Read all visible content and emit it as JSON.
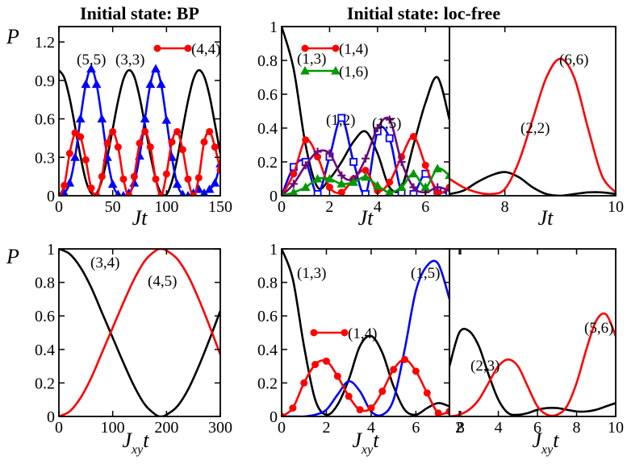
{
  "chart_data": [
    {
      "type": "line",
      "title": "Initial state: BP",
      "ylabel": "P",
      "xlabel": "Jt",
      "xlim": [
        0,
        150
      ],
      "ylim": [
        0,
        1.32
      ],
      "xticks": [
        0,
        50,
        100,
        150
      ],
      "yticks": [
        0,
        0.3,
        0.6,
        0.9,
        1.2
      ],
      "ytick_labels": [
        "0",
        "0.3",
        "0.6",
        "0.9",
        "1.2"
      ],
      "series": [
        {
          "name": "(3,3)",
          "color": "#000000",
          "marker": "none",
          "x": [
            0,
            5,
            10,
            15,
            20,
            25,
            30,
            35,
            40,
            45,
            50,
            55,
            60,
            65,
            70,
            75,
            80,
            85,
            90,
            95,
            100,
            105,
            110,
            115,
            120,
            125,
            130,
            135,
            140,
            145,
            150
          ],
          "y": [
            0.98,
            0.92,
            0.76,
            0.54,
            0.31,
            0.12,
            0.02,
            0.02,
            0.12,
            0.3,
            0.52,
            0.74,
            0.91,
            0.98,
            0.93,
            0.77,
            0.55,
            0.32,
            0.13,
            0.02,
            0.01,
            0.11,
            0.29,
            0.52,
            0.74,
            0.91,
            0.98,
            0.93,
            0.78,
            0.56,
            0.33
          ]
        },
        {
          "name": "(5,5)",
          "color": "#0000ff",
          "marker": "triangle",
          "x": [
            0,
            5,
            10,
            15,
            20,
            25,
            30,
            35,
            40,
            45,
            50,
            55,
            60,
            65,
            70,
            75,
            80,
            85,
            90,
            95,
            100,
            105,
            110,
            115,
            120,
            125,
            130,
            135,
            140,
            145,
            150
          ],
          "y": [
            0,
            0.02,
            0.1,
            0.3,
            0.6,
            0.87,
            0.99,
            0.87,
            0.6,
            0.3,
            0.09,
            0.01,
            0,
            0.02,
            0.1,
            0.31,
            0.6,
            0.87,
            0.99,
            0.87,
            0.59,
            0.3,
            0.09,
            0.01,
            0,
            0.02,
            0.05,
            0.02,
            0.05,
            0.1,
            0.25
          ]
        },
        {
          "name": "(4,4)",
          "color": "#ff0000",
          "marker": "circle",
          "x": [
            0,
            5,
            10,
            15,
            20,
            25,
            30,
            35,
            40,
            45,
            50,
            55,
            60,
            65,
            70,
            75,
            80,
            85,
            90,
            95,
            100,
            105,
            110,
            115,
            120,
            125,
            130,
            135,
            140,
            145,
            150
          ],
          "y": [
            0,
            0.08,
            0.33,
            0.49,
            0.46,
            0.28,
            0.06,
            0,
            0.15,
            0.41,
            0.5,
            0.38,
            0.13,
            0,
            0.15,
            0.41,
            0.5,
            0.38,
            0.13,
            0,
            0.17,
            0.42,
            0.5,
            0.36,
            0.13,
            0,
            0.14,
            0.42,
            0.5,
            0.38,
            0.2
          ]
        }
      ],
      "annotations": [
        "(5,5)",
        "(3,3)"
      ],
      "legend": [
        "(4,4)"
      ]
    },
    {
      "type": "line",
      "title": "Initial state: loc-free",
      "xlabel": "Jt",
      "xlim": [
        0,
        7
      ],
      "ylim": [
        0,
        1
      ],
      "xticks": [
        0,
        2,
        4,
        6
      ],
      "yticks": [
        0,
        0.2,
        0.4,
        0.6,
        0.8,
        1
      ],
      "ytick_labels": [
        "0",
        "0.2",
        "0.4",
        "0.6",
        "0.8",
        "1"
      ],
      "series": [
        {
          "name": "(1,3)",
          "color": "#000000",
          "marker": "none",
          "x": [
            0,
            0.5,
            1,
            1.5,
            2,
            2.5,
            3,
            3.5,
            4,
            4.5,
            5,
            5.5,
            6,
            6.5,
            7
          ],
          "y": [
            1.0,
            0.75,
            0.3,
            0.05,
            0.1,
            0.2,
            0.32,
            0.38,
            0.25,
            0.05,
            0.05,
            0.3,
            0.55,
            0.7,
            0.45
          ]
        },
        {
          "name": "(1,2)",
          "color": "#0000ff",
          "marker": "square",
          "x": [
            0,
            0.5,
            1,
            1.5,
            2,
            2.5,
            3,
            3.5,
            4,
            4.5,
            5,
            5.5,
            6,
            6.5,
            7
          ],
          "y": [
            0,
            0.17,
            0.2,
            0.01,
            0.23,
            0.46,
            0.2,
            0.01,
            0.38,
            0.34,
            0.02,
            0.01,
            0.13,
            0.03,
            0.02
          ]
        },
        {
          "name": "(1,4)",
          "color": "#ff0000",
          "marker": "circle",
          "x": [
            0,
            0.5,
            1,
            1.5,
            2,
            2.5,
            3,
            3.5,
            4,
            4.5,
            5,
            5.5,
            6,
            6.5,
            7
          ],
          "y": [
            0,
            0.13,
            0.33,
            0.23,
            0.05,
            0.02,
            0.1,
            0.15,
            0.03,
            0.08,
            0.23,
            0.35,
            0.18,
            0.02,
            0.05
          ]
        },
        {
          "name": "(1,5)",
          "color": "#6a0a78",
          "marker": "plus",
          "x": [
            0,
            0.5,
            1,
            1.5,
            2,
            2.5,
            3,
            3.5,
            4,
            4.5,
            5,
            5.5,
            6,
            6.5,
            7
          ],
          "y": [
            0,
            0.07,
            0.18,
            0.26,
            0.25,
            0.12,
            0.1,
            0.22,
            0.4,
            0.45,
            0.2,
            0.05,
            0.02,
            0.05,
            0.03
          ]
        },
        {
          "name": "(1,6)",
          "color": "#009900",
          "marker": "triangle",
          "x": [
            0,
            0.5,
            1,
            1.5,
            2,
            2.5,
            3,
            3.5,
            4,
            4.5,
            5,
            5.5,
            6,
            6.5,
            7
          ],
          "y": [
            0,
            0.02,
            0.05,
            0.1,
            0.1,
            0.07,
            0.08,
            0.11,
            0.06,
            0.02,
            0.05,
            0.13,
            0.05,
            0.16,
            0.12
          ]
        }
      ],
      "annotations": [
        "(1,3)",
        "(1,2)",
        "(1,5)"
      ],
      "legend": [
        "(1,4)",
        "(1,6)"
      ]
    },
    {
      "type": "line",
      "xlabel": "Jt",
      "xlim": [
        7,
        10
      ],
      "ylim": [
        0,
        1
      ],
      "xticks": [
        8,
        10
      ],
      "series": [
        {
          "name": "(2,2)",
          "color": "#000000",
          "marker": "none",
          "x": [
            7,
            7.25,
            7.5,
            7.75,
            8,
            8.25,
            8.5,
            8.75,
            9,
            9.25,
            9.5,
            9.75,
            10
          ],
          "y": [
            0.01,
            0.03,
            0.08,
            0.12,
            0.14,
            0.11,
            0.05,
            0.01,
            0,
            0.01,
            0.02,
            0.02,
            0.01
          ]
        },
        {
          "name": "(6,6)",
          "color": "#ff0000",
          "marker": "none",
          "x": [
            7,
            7.25,
            7.5,
            7.75,
            8,
            8.25,
            8.5,
            8.75,
            9,
            9.25,
            9.5,
            9.75,
            10
          ],
          "y": [
            0.1,
            0.05,
            0.02,
            0.01,
            0.04,
            0.2,
            0.45,
            0.7,
            0.81,
            0.7,
            0.4,
            0.12,
            0.02
          ]
        }
      ],
      "annotations": [
        "(2,2)",
        "(6,6)"
      ]
    },
    {
      "type": "line",
      "ylabel": "P",
      "xlabel": "J_xy t",
      "xlim": [
        0,
        300
      ],
      "ylim": [
        0,
        1
      ],
      "xticks": [
        0,
        100,
        200,
        300
      ],
      "yticks": [
        0,
        0.2,
        0.4,
        0.6,
        0.8,
        1
      ],
      "ytick_labels": [
        "0",
        "0.2",
        "0.4",
        "0.6",
        "0.8",
        "1"
      ],
      "series": [
        {
          "name": "(3,4)",
          "color": "#000000",
          "marker": "none",
          "x": [
            0,
            20,
            40,
            60,
            80,
            100,
            120,
            140,
            160,
            180,
            190,
            200,
            220,
            240,
            260,
            280,
            300
          ],
          "y": [
            1.0,
            0.97,
            0.89,
            0.77,
            0.62,
            0.47,
            0.32,
            0.18,
            0.07,
            0.01,
            0.0,
            0.01,
            0.06,
            0.16,
            0.3,
            0.46,
            0.63
          ]
        },
        {
          "name": "(4,5)",
          "color": "#ff0000",
          "marker": "none",
          "x": [
            0,
            20,
            40,
            60,
            80,
            100,
            120,
            140,
            160,
            180,
            190,
            200,
            220,
            240,
            260,
            280,
            300
          ],
          "y": [
            0.0,
            0.03,
            0.11,
            0.23,
            0.38,
            0.53,
            0.68,
            0.82,
            0.93,
            0.99,
            1.0,
            0.99,
            0.94,
            0.84,
            0.7,
            0.54,
            0.37
          ]
        }
      ],
      "annotations": [
        "(3,4)",
        "(4,5)"
      ]
    },
    {
      "type": "line",
      "xlabel": "J_xy t",
      "xlim": [
        0,
        7.5
      ],
      "ylim": [
        0,
        1
      ],
      "xticks": [
        0,
        2,
        4,
        6,
        8
      ],
      "yticks": [
        0,
        0.2,
        0.4,
        0.6,
        0.8,
        1
      ],
      "ytick_labels": [
        "0",
        "0.2",
        "0.4",
        "0.6",
        "0.8",
        "1"
      ],
      "series": [
        {
          "name": "(1,3)",
          "color": "#000000",
          "marker": "none",
          "x": [
            0,
            0.5,
            1,
            1.5,
            2,
            2.5,
            3,
            3.5,
            4,
            4.5,
            5,
            5.5,
            6,
            6.5,
            7,
            7.5
          ],
          "y": [
            1.0,
            0.82,
            0.42,
            0.1,
            0.01,
            0.07,
            0.22,
            0.42,
            0.48,
            0.38,
            0.18,
            0.04,
            0.01,
            0.05,
            0.08,
            0.06
          ]
        },
        {
          "name": "(1,5)",
          "color": "#0000ff",
          "marker": "none",
          "x": [
            0,
            0.5,
            1,
            1.5,
            2,
            2.5,
            3,
            3.5,
            4,
            4.5,
            5,
            5.5,
            6,
            6.5,
            7,
            7.5
          ],
          "y": [
            0,
            0,
            0,
            0.01,
            0.04,
            0.13,
            0.21,
            0.15,
            0.03,
            0.01,
            0.1,
            0.4,
            0.75,
            0.9,
            0.91,
            0.7
          ]
        },
        {
          "name": "(1,4)",
          "color": "#ff0000",
          "marker": "circle",
          "x": [
            0,
            0.5,
            1,
            1.5,
            2,
            2.5,
            3,
            3.5,
            4,
            4.5,
            5,
            5.5,
            6,
            6.5,
            7,
            7.5
          ],
          "y": [
            0,
            0.05,
            0.2,
            0.31,
            0.33,
            0.24,
            0.12,
            0.04,
            0.05,
            0.15,
            0.28,
            0.34,
            0.27,
            0.14,
            0.02,
            0.03
          ]
        }
      ],
      "annotations": [
        "(1,3)",
        "(1,5)"
      ],
      "legend": [
        "(1,4)"
      ]
    },
    {
      "type": "line",
      "xlabel": "J_xy t",
      "xlim": [
        1.5,
        10
      ],
      "ylim": [
        0,
        1
      ],
      "xticks": [
        2,
        4,
        6,
        8,
        10
      ],
      "series": [
        {
          "name": "(2,3)",
          "color": "#000000",
          "marker": "none",
          "x": [
            1.5,
            2,
            2.5,
            3,
            3.5,
            4,
            4.5,
            5,
            5.5,
            6,
            6.5,
            7,
            7.5,
            8,
            8.5,
            9,
            9.5,
            10
          ],
          "y": [
            0.3,
            0.5,
            0.51,
            0.42,
            0.25,
            0.1,
            0.02,
            0.01,
            0.02,
            0.04,
            0.05,
            0.05,
            0.04,
            0.03,
            0.03,
            0.04,
            0.06,
            0.08
          ]
        },
        {
          "name": "(5,6)",
          "color": "#ff0000",
          "marker": "none",
          "x": [
            1.5,
            2,
            2.5,
            3,
            3.5,
            4,
            4.5,
            5,
            5.5,
            6,
            6.5,
            7,
            7.5,
            8,
            8.5,
            9,
            9.5,
            10
          ],
          "y": [
            0,
            0.01,
            0.04,
            0.1,
            0.2,
            0.3,
            0.34,
            0.3,
            0.18,
            0.06,
            0.01,
            0.01,
            0.06,
            0.2,
            0.4,
            0.57,
            0.61,
            0.48
          ]
        }
      ],
      "annotations": [
        "(2,3)",
        "(5,6)"
      ]
    }
  ]
}
